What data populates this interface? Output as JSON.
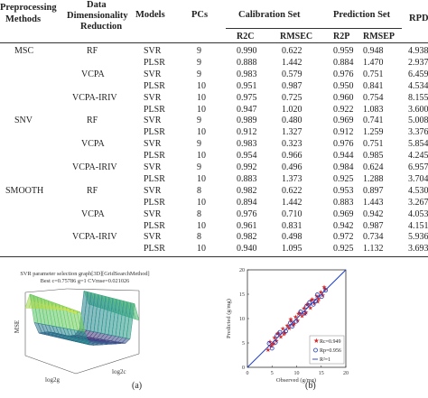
{
  "table": {
    "headers": {
      "preprocessing": [
        "Preprocessing",
        "Methods"
      ],
      "reduction": [
        "Data",
        "Dimensionality",
        "Reduction"
      ],
      "models": "Models",
      "pcs": "PCs",
      "calibration_set": "Calibration Set",
      "prediction_set": "Prediction Set",
      "rpd": "RPD",
      "r2c": "R2C",
      "rmsec": "RMSEC",
      "r2p": "R2P",
      "rmsep": "RMSEP"
    },
    "rows": [
      {
        "prep": "MSC",
        "red": "RF",
        "model": "SVR",
        "pcs": "9",
        "r2c": "0.990",
        "rmsec": "0.622",
        "r2p": "0.959",
        "rmsep": "0.948",
        "rpd": "4.938"
      },
      {
        "prep": "",
        "red": "",
        "model": "PLSR",
        "pcs": "9",
        "r2c": "0.888",
        "rmsec": "1.442",
        "r2p": "0.884",
        "rmsep": "1.470",
        "rpd": "2.937"
      },
      {
        "prep": "",
        "red": "VCPA",
        "model": "SVR",
        "pcs": "9",
        "r2c": "0.983",
        "rmsec": "0.579",
        "r2p": "0.976",
        "rmsep": "0.751",
        "rpd": "6.459"
      },
      {
        "prep": "",
        "red": "",
        "model": "PLSR",
        "pcs": "10",
        "r2c": "0.951",
        "rmsec": "0.987",
        "r2p": "0.950",
        "rmsep": "0.841",
        "rpd": "4.534"
      },
      {
        "prep": "",
        "red": "VCPA-IRIV",
        "model": "SVR",
        "pcs": "10",
        "r2c": "0.975",
        "rmsec": "0.725",
        "r2p": "0.960",
        "rmsep": "0.754",
        "rpd": "8.155"
      },
      {
        "prep": "",
        "red": "",
        "model": "PLSR",
        "pcs": "10",
        "r2c": "0.947",
        "rmsec": "1.020",
        "r2p": "0.922",
        "rmsep": "1.083",
        "rpd": "3.600"
      },
      {
        "prep": "SNV",
        "red": "RF",
        "model": "SVR",
        "pcs": "9",
        "r2c": "0.989",
        "rmsec": "0.480",
        "r2p": "0.969",
        "rmsep": "0.741",
        "rpd": "5.008"
      },
      {
        "prep": "",
        "red": "",
        "model": "PLSR",
        "pcs": "10",
        "r2c": "0.912",
        "rmsec": "1.327",
        "r2p": "0.912",
        "rmsep": "1.259",
        "rpd": "3.376"
      },
      {
        "prep": "",
        "red": "VCPA",
        "model": "SVR",
        "pcs": "9",
        "r2c": "0.983",
        "rmsec": "0.323",
        "r2p": "0.976",
        "rmsep": "0.751",
        "rpd": "5.854"
      },
      {
        "prep": "",
        "red": "",
        "model": "PLSR",
        "pcs": "10",
        "r2c": "0.954",
        "rmsec": "0.966",
        "r2p": "0.944",
        "rmsep": "0.985",
        "rpd": "4.245"
      },
      {
        "prep": "",
        "red": "VCPA-IRIV",
        "model": "SVR",
        "pcs": "9",
        "r2c": "0.992",
        "rmsec": "0.496",
        "r2p": "0.984",
        "rmsep": "0.624",
        "rpd": "6.957"
      },
      {
        "prep": "",
        "red": "",
        "model": "PLSR",
        "pcs": "10",
        "r2c": "0.883",
        "rmsec": "1.373",
        "r2p": "0.925",
        "rmsep": "1.288",
        "rpd": "3.704"
      },
      {
        "prep": "SMOOTH",
        "red": "RF",
        "model": "SVR",
        "pcs": "8",
        "r2c": "0.982",
        "rmsec": "0.622",
        "r2p": "0.953",
        "rmsep": "0.897",
        "rpd": "4.530"
      },
      {
        "prep": "",
        "red": "",
        "model": "PLSR",
        "pcs": "10",
        "r2c": "0.894",
        "rmsec": "1.442",
        "r2p": "0.883",
        "rmsep": "1.443",
        "rpd": "3.267"
      },
      {
        "prep": "",
        "red": "VCPA",
        "model": "SVR",
        "pcs": "8",
        "r2c": "0.976",
        "rmsec": "0.710",
        "r2p": "0.969",
        "rmsep": "0.942",
        "rpd": "4.053"
      },
      {
        "prep": "",
        "red": "",
        "model": "PLSR",
        "pcs": "10",
        "r2c": "0.961",
        "rmsec": "0.831",
        "r2p": "0.942",
        "rmsep": "0.987",
        "rpd": "4.151"
      },
      {
        "prep": "",
        "red": "VCPA-IRIV",
        "model": "SVR",
        "pcs": "8",
        "r2c": "0.982",
        "rmsec": "0.498",
        "r2p": "0.972",
        "rmsep": "0.734",
        "rpd": "5.936"
      },
      {
        "prep": "",
        "red": "",
        "model": "PLSR",
        "pcs": "10",
        "r2c": "0.940",
        "rmsec": "1.095",
        "r2p": "0.925",
        "rmsep": "1.132",
        "rpd": "3.693"
      }
    ]
  },
  "figure_a": {
    "title": "SVR parameter selection graph[3D][GridSearchMethod]",
    "subtitle": "Best c=0.75786 g=1 CVmse=0.021026",
    "zlabel": "MSE",
    "xlabel": "log2c",
    "ylabel": "log2g",
    "caption": "(a)"
  },
  "figure_b": {
    "caption": "(b)",
    "legend": [
      "Rc=0.949",
      "Rp=0.956",
      "R²=1"
    ]
  },
  "chart_data": {
    "type": "scatter",
    "xlabel": "Observed (g/mg)",
    "ylabel": "Predicted (g/mg)",
    "xlim": [
      0,
      20
    ],
    "ylim": [
      0,
      20
    ],
    "xticks": [
      "0",
      "5",
      "10",
      "15",
      "20"
    ],
    "yticks": [
      "0",
      "5",
      "10",
      "15",
      "20"
    ],
    "colors": {
      "calibration": "#d42a2a",
      "prediction": "#1f3fbf",
      "line": "#1f3fbf"
    },
    "series": [
      {
        "name": "Rc=0.949",
        "marker": "star",
        "x": [
          4.2,
          4.6,
          5.1,
          5.5,
          5.9,
          6.3,
          6.8,
          7.2,
          7.6,
          8.1,
          8.5,
          8.9,
          9.3,
          9.8,
          10.2,
          10.6,
          11.1,
          11.5,
          11.9,
          12.3,
          12.8,
          13.2,
          13.6,
          14.1,
          14.5,
          14.9,
          15.3,
          15.8,
          4.8,
          6.1,
          7.4,
          8.8,
          10.4,
          11.7,
          13.0,
          14.3,
          15.6,
          9.5,
          12.1,
          5.3
        ],
        "y": [
          3.6,
          5.2,
          4.8,
          6.1,
          5.4,
          7.0,
          6.3,
          7.9,
          7.1,
          8.6,
          8.0,
          9.5,
          8.7,
          10.3,
          9.6,
          11.2,
          10.5,
          12.1,
          11.3,
          13.0,
          12.2,
          13.9,
          13.1,
          14.6,
          14.0,
          15.4,
          14.8,
          16.1,
          4.3,
          6.9,
          6.8,
          9.9,
          11.0,
          11.0,
          13.8,
          13.5,
          16.4,
          8.9,
          12.8,
          4.9
        ]
      },
      {
        "name": "Rp=0.956",
        "marker": "circle",
        "x": [
          4.4,
          5.7,
          6.6,
          7.8,
          8.7,
          9.9,
          10.8,
          11.6,
          12.6,
          13.4,
          14.2,
          15.1,
          15.9,
          6.0,
          9.1,
          12.0,
          13.9,
          5.0
        ],
        "y": [
          4.9,
          5.1,
          7.2,
          7.4,
          9.1,
          9.4,
          11.4,
          11.1,
          13.3,
          12.9,
          14.9,
          14.5,
          15.8,
          6.5,
          8.4,
          12.5,
          13.6,
          3.9
        ]
      }
    ]
  }
}
